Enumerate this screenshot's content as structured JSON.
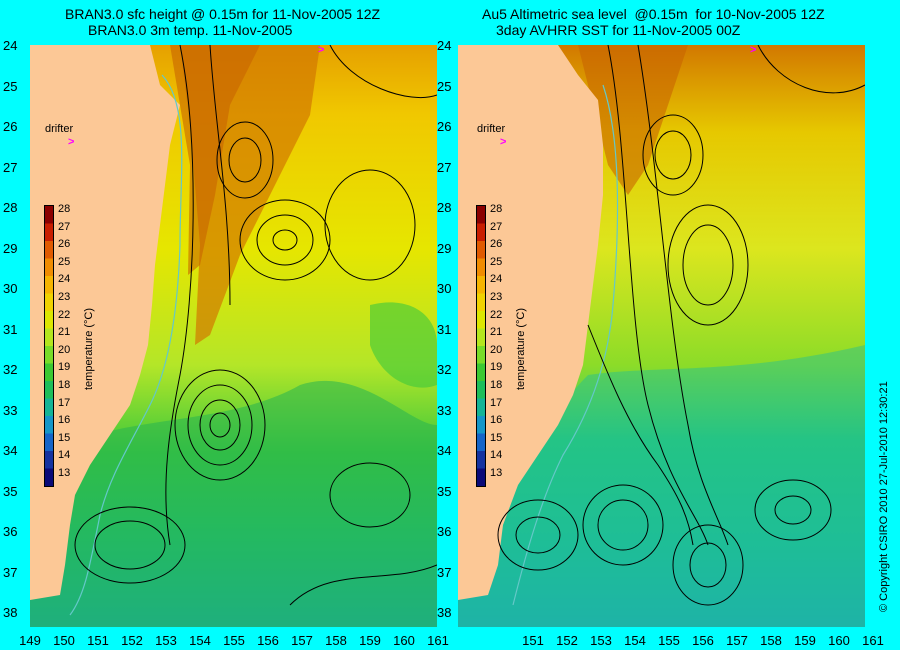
{
  "left_panel": {
    "title_line1": "BRAN3.0 sfc height @ 0.15m for 11-Nov-2005 12Z",
    "title_line2": "BRAN3.0 3m temp. 11-Nov-2005"
  },
  "right_panel": {
    "title_line1": "Au5 Altimetric sea level  @0.15m  for 10-Nov-2005 12Z",
    "title_line2": "3day AVHRR SST for 11-Nov-2005 00Z"
  },
  "drifter_label": "drifter",
  "colorbar": {
    "title": "temperature (°C)",
    "ticks": [
      "28",
      "27",
      "26",
      "25",
      "24",
      "23",
      "22",
      "21",
      "20",
      "19",
      "18",
      "17",
      "16",
      "15",
      "14",
      "13"
    ],
    "colors": [
      "#8b0000",
      "#c81e00",
      "#e05a00",
      "#f08c00",
      "#f5b400",
      "#f0d200",
      "#dce600",
      "#b4e61e",
      "#78dc28",
      "#3cc832",
      "#1ebe5a",
      "#14b496",
      "#1496c8",
      "#1464c8",
      "#1432a0",
      "#0a0a78"
    ]
  },
  "axes": {
    "lat_labels": [
      "24",
      "25",
      "26",
      "27",
      "28",
      "29",
      "30",
      "31",
      "32",
      "33",
      "34",
      "35",
      "36",
      "37",
      "38"
    ],
    "lon_labels_left": [
      "149",
      "150",
      "151",
      "152",
      "153",
      "154",
      "155",
      "156",
      "157",
      "158",
      "159",
      "160",
      "161"
    ],
    "lon_labels_right": [
      "151",
      "152",
      "153",
      "154",
      "155",
      "156",
      "157",
      "158",
      "159",
      "160",
      "161"
    ]
  },
  "copyright": "© Copyright CSIRO 2010   27-Jul-2010 12:30:21",
  "colors": {
    "land": "#fcc896",
    "frame": "#00ffff",
    "contour": "#000000",
    "bathymetry": "#64c8c8",
    "drifter": "#ff00ff"
  }
}
